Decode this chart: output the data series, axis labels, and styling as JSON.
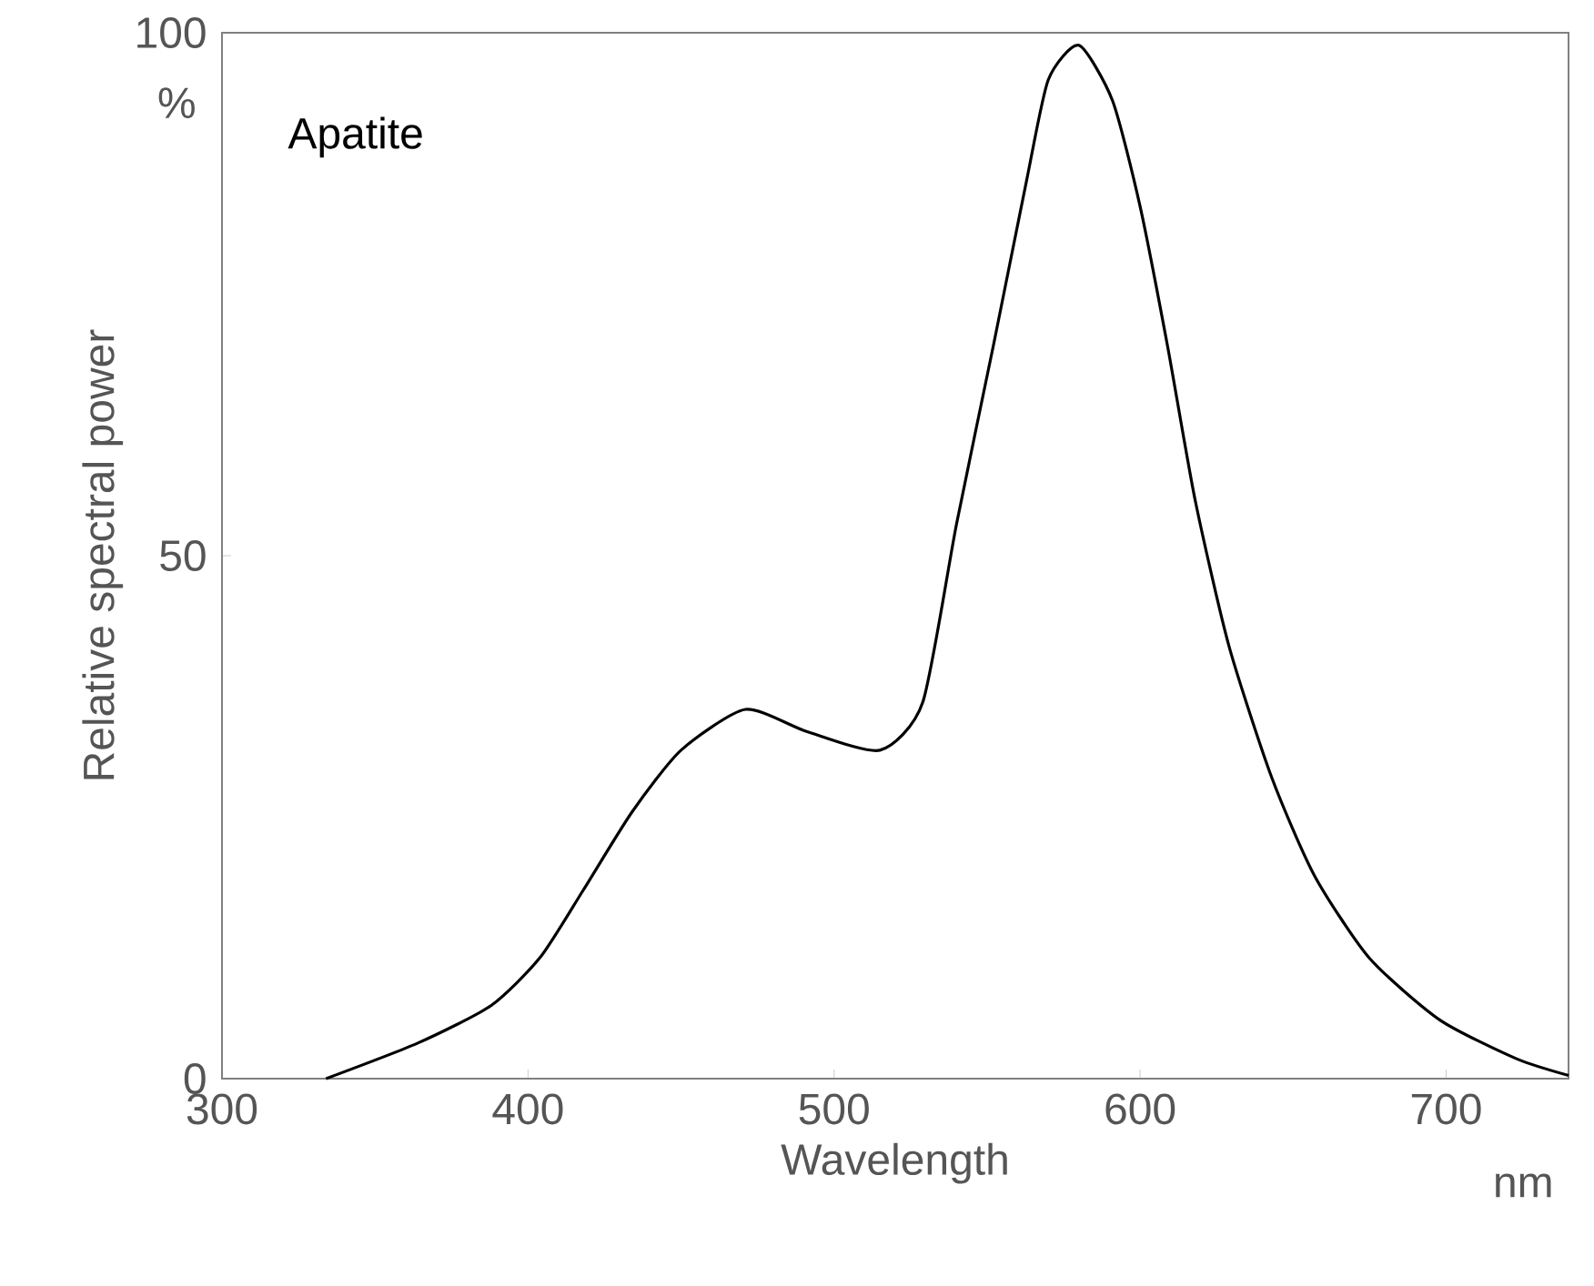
{
  "chart_data": {
    "type": "line",
    "title": "Apatite",
    "xlabel": "Wavelength",
    "ylabel": "Relative spectral power",
    "annotations": [
      "%",
      "nm"
    ],
    "xlim": [
      300,
      740
    ],
    "ylim": [
      0,
      100
    ],
    "xticks": [
      300,
      400,
      500,
      600,
      700
    ],
    "yticks": [
      0,
      50,
      100
    ],
    "marker": "none",
    "line_style": "solid",
    "series": [
      {
        "color": "#000000",
        "x": [
          334,
          364,
          388,
          404,
          418,
          434,
          450,
          471,
          491,
          515,
          529,
          540,
          552,
          563,
          570,
          580,
          591,
          600,
          609,
          618,
          629,
          643,
          657,
          675,
          698,
          723,
          740
        ],
        "values": [
          0,
          3.4,
          7.0,
          11.6,
          18,
          25.5,
          31.4,
          35.3,
          33.2,
          31.4,
          36,
          53,
          70,
          86,
          95.5,
          98.8,
          93.5,
          83.4,
          70,
          55.3,
          41.4,
          28.8,
          19.4,
          11.5,
          5.6,
          1.9,
          0.3
        ]
      }
    ]
  }
}
